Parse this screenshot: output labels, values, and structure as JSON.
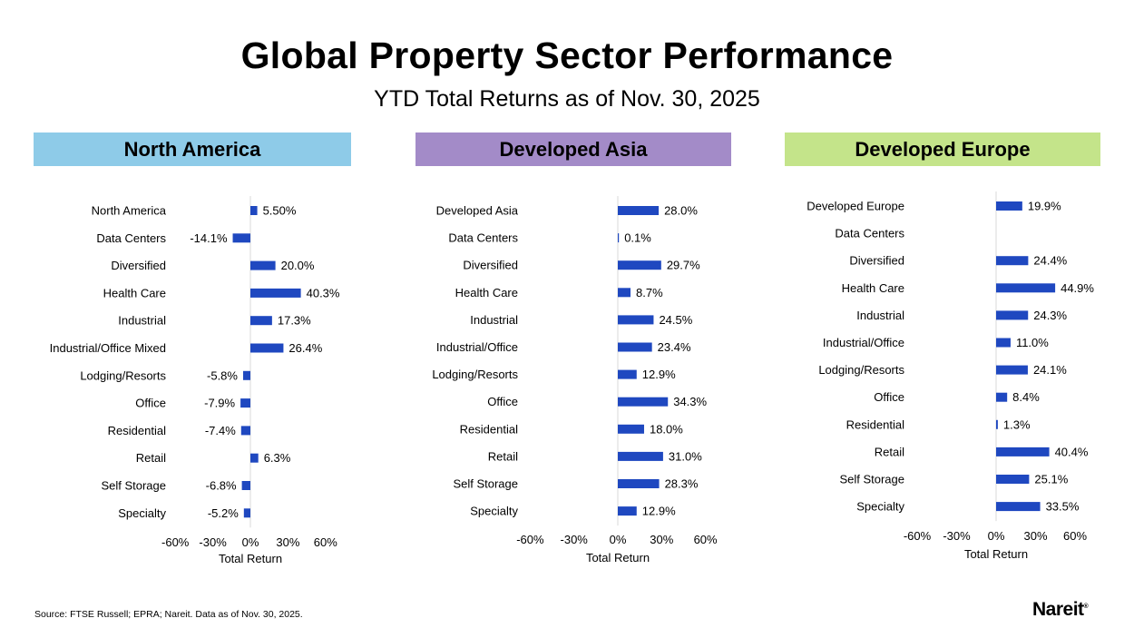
{
  "title": "Global Property Sector Performance",
  "subtitle": "YTD Total Returns as of Nov. 30, 2025",
  "source": "Source: FTSE Russell; EPRA; Nareit. Data as of Nov. 30, 2025.",
  "logo": "Nareit",
  "colors": {
    "bar": "#1f48c0",
    "north_america_header": "#8ecbe8",
    "developed_asia_header": "#a38bc8",
    "developed_europe_header": "#c4e48a",
    "axis": "#d9d9d9"
  },
  "chart_data": [
    {
      "type": "bar",
      "orientation": "horizontal",
      "title": "North America",
      "xlabel": "Total Return",
      "xlim": [
        -60,
        60
      ],
      "ticks": [
        "-60%",
        "-30%",
        "0%",
        "30%",
        "60%"
      ],
      "categories": [
        "North America",
        "Data Centers",
        "Diversified",
        "Health Care",
        "Industrial",
        "Industrial/Office Mixed",
        "Lodging/Resorts",
        "Office",
        "Residential",
        "Retail",
        "Self Storage",
        "Specialty"
      ],
      "values": [
        5.5,
        -14.1,
        20.0,
        40.3,
        17.3,
        26.4,
        -5.8,
        -7.9,
        -7.4,
        6.3,
        -6.8,
        -5.2
      ],
      "labels": [
        "5.50%",
        "-14.1%",
        "20.0%",
        "40.3%",
        "17.3%",
        "26.4%",
        "-5.8%",
        "-7.9%",
        "-7.4%",
        "6.3%",
        "-6.8%",
        "-5.2%"
      ]
    },
    {
      "type": "bar",
      "orientation": "horizontal",
      "title": "Developed Asia",
      "xlabel": "Total Return",
      "xlim": [
        -60,
        60
      ],
      "ticks": [
        "-60%",
        "-30%",
        "0%",
        "30%",
        "60%"
      ],
      "categories": [
        "Developed Asia",
        "Data Centers",
        "Diversified",
        "Health Care",
        "Industrial",
        "Industrial/Office",
        "Lodging/Resorts",
        "Office",
        "Residential",
        "Retail",
        "Self Storage",
        "Specialty"
      ],
      "values": [
        28.0,
        0.1,
        29.7,
        8.7,
        24.5,
        23.4,
        12.9,
        34.3,
        18.0,
        31.0,
        28.3,
        12.9
      ],
      "labels": [
        "28.0%",
        "0.1%",
        "29.7%",
        "8.7%",
        "24.5%",
        "23.4%",
        "12.9%",
        "34.3%",
        "18.0%",
        "31.0%",
        "28.3%",
        "12.9%"
      ]
    },
    {
      "type": "bar",
      "orientation": "horizontal",
      "title": "Developed Europe",
      "xlabel": "Total Return",
      "xlim": [
        -60,
        60
      ],
      "ticks": [
        "-60%",
        "-30%",
        "0%",
        "30%",
        "60%"
      ],
      "categories": [
        "Developed Europe",
        "Data Centers",
        "Diversified",
        "Health Care",
        "Industrial",
        "Industrial/Office",
        "Lodging/Resorts",
        "Office",
        "Residential",
        "Retail",
        "Self Storage",
        "Specialty"
      ],
      "values": [
        19.9,
        null,
        24.4,
        44.9,
        24.3,
        11.0,
        24.1,
        8.4,
        1.3,
        40.4,
        25.1,
        33.5
      ],
      "labels": [
        "19.9%",
        "",
        "24.4%",
        "44.9%",
        "24.3%",
        "11.0%",
        "24.1%",
        "8.4%",
        "1.3%",
        "40.4%",
        "25.1%",
        "33.5%"
      ]
    }
  ]
}
